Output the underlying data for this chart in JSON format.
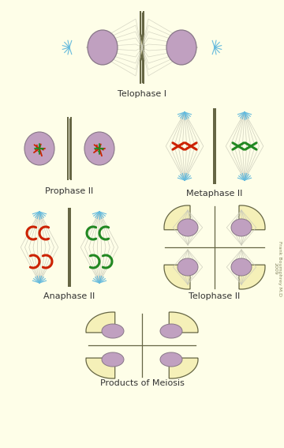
{
  "bg_color": "#FEFEE8",
  "cell_fill": "#F5F0B8",
  "cell_outline": "#666644",
  "nucleus_fill": "#C0A0C0",
  "nucleus_outline": "#887788",
  "spindle_color": "#CCCCBB",
  "aster_color": "#66BBDD",
  "chr_red": "#CC2200",
  "chr_green": "#228822",
  "label_color": "#333333",
  "credit_color": "#888866",
  "labels": [
    "Telophase I",
    "Prophase II",
    "Metaphase II",
    "Anaphase II",
    "Telophase II",
    "Products of Meiosis"
  ]
}
